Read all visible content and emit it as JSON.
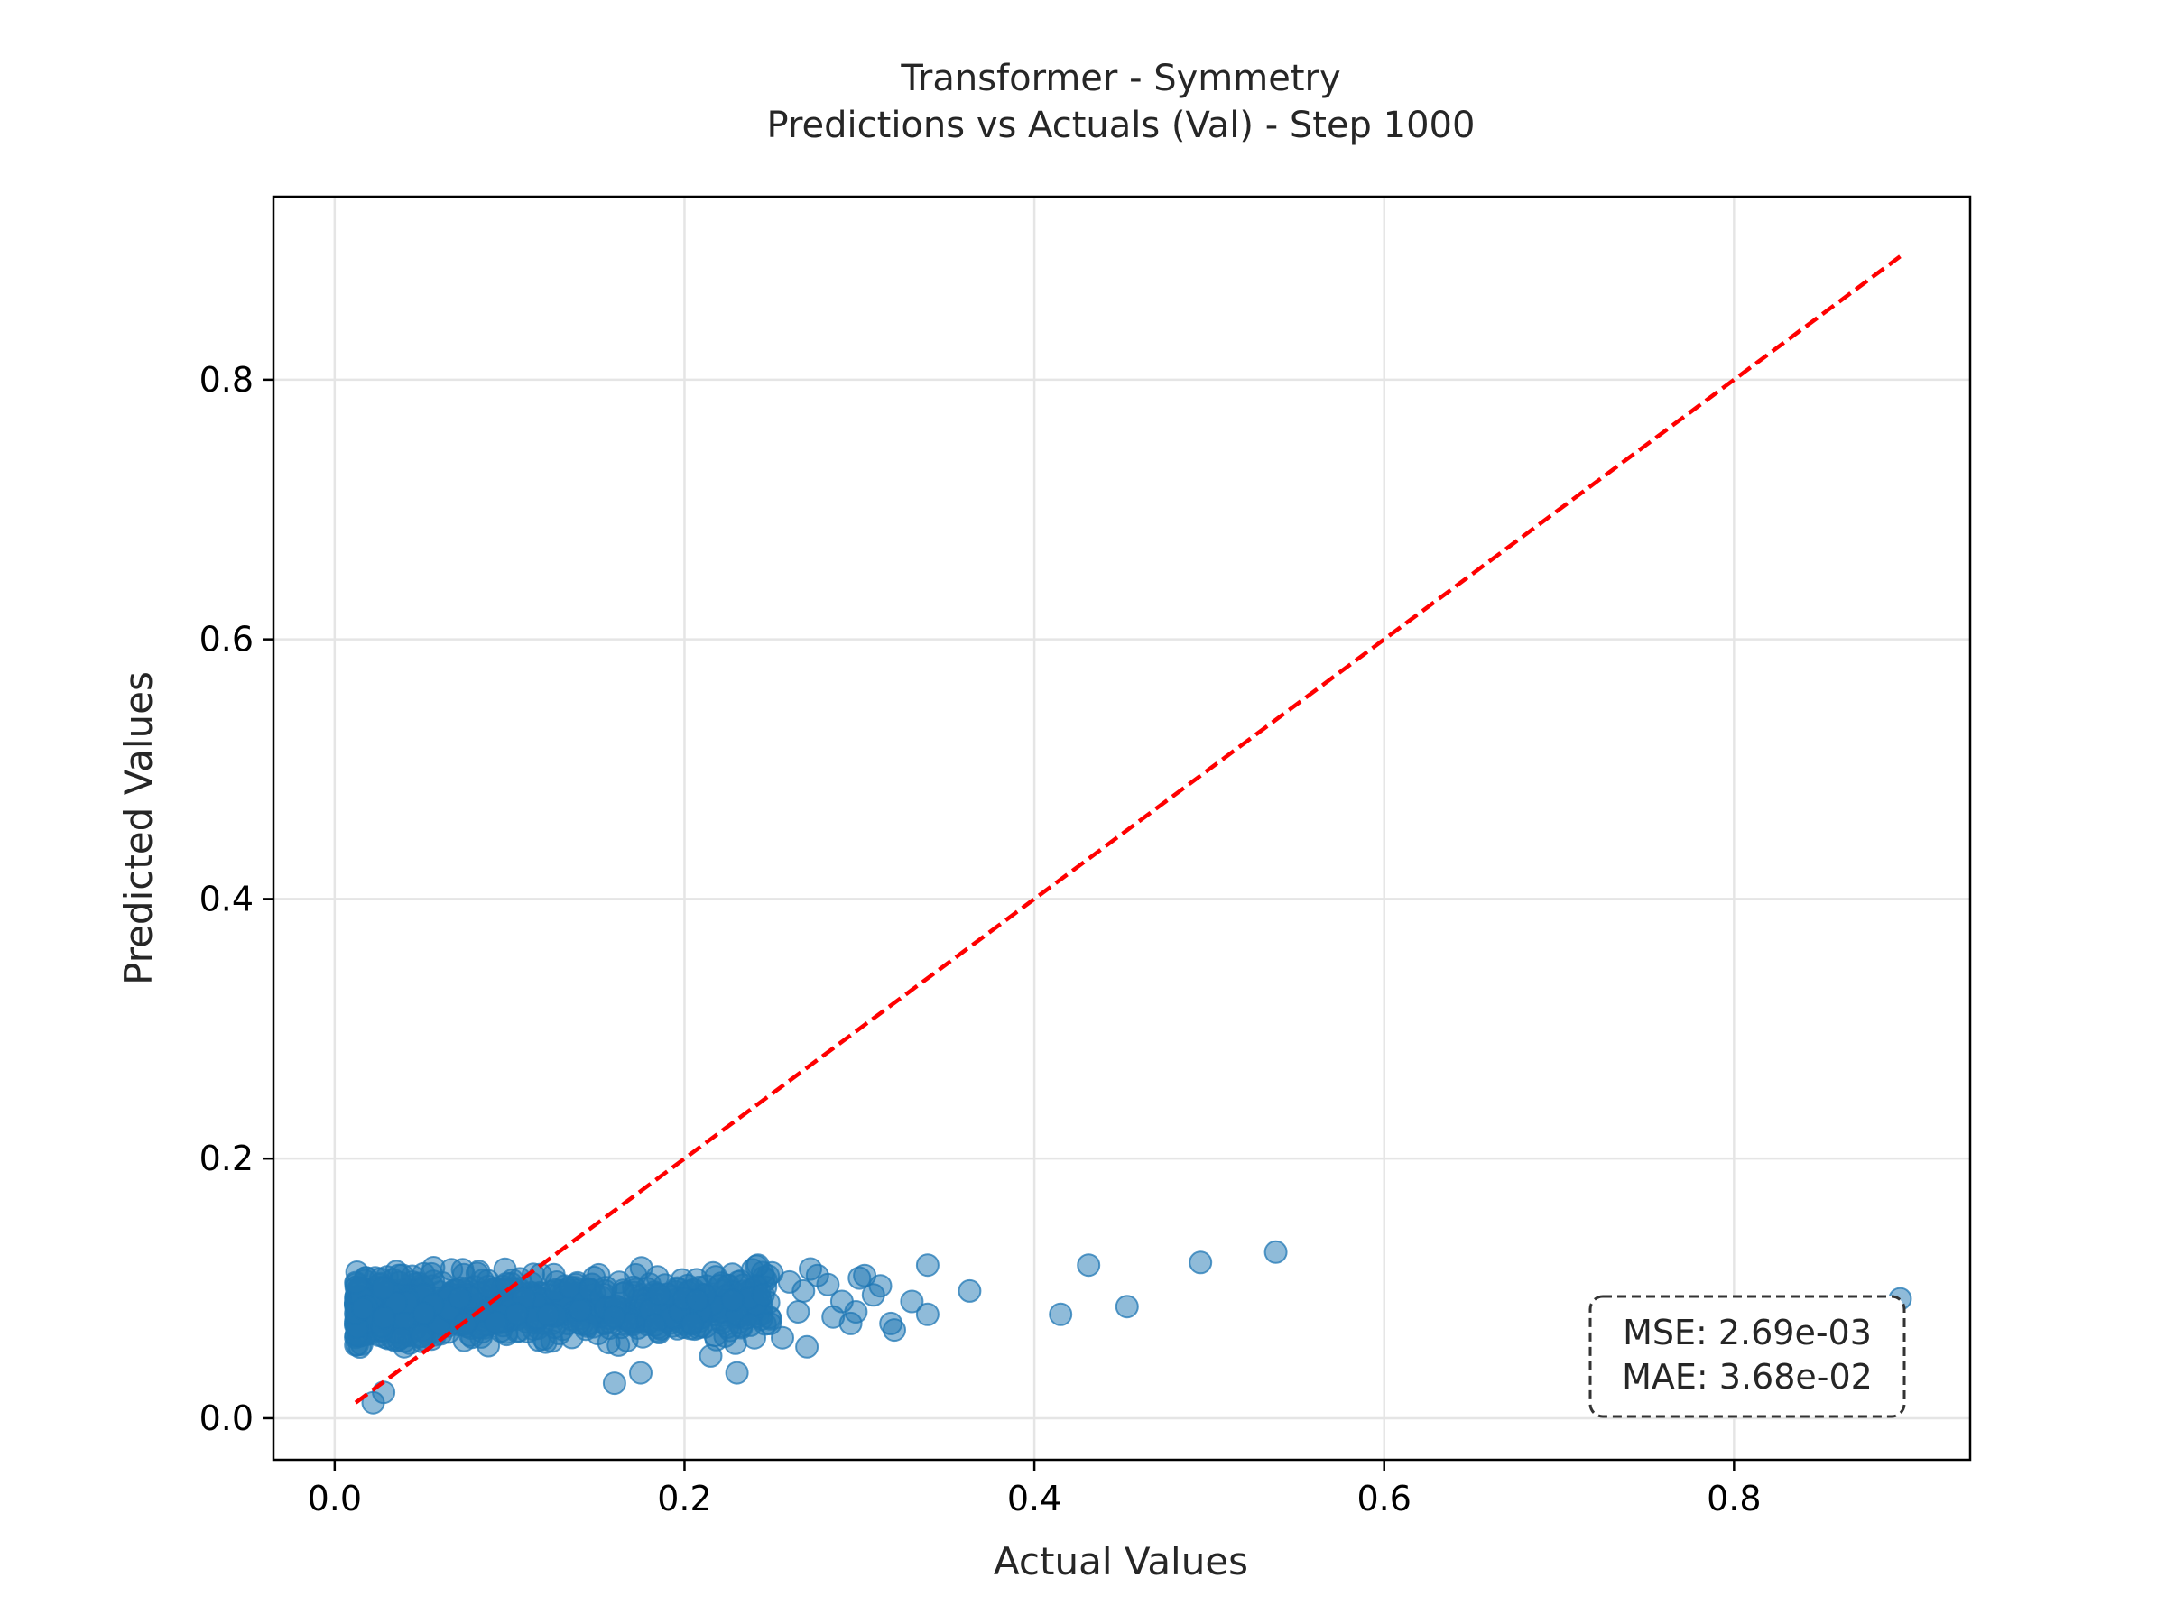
{
  "chart_data": {
    "type": "scatter",
    "title": "Transformer - Symmetry",
    "subtitle": "Predictions vs Actuals (Val) - Step 1000",
    "xlabel": "Actual Values",
    "ylabel": "Predicted Values",
    "xlim": [
      -0.035,
      0.935
    ],
    "ylim": [
      -0.032,
      0.941
    ],
    "xticks": [
      0.0,
      0.2,
      0.4,
      0.6,
      0.8
    ],
    "yticks": [
      0.0,
      0.2,
      0.4,
      0.6,
      0.8
    ],
    "xtick_labels": [
      "0.0",
      "0.2",
      "0.4",
      "0.6",
      "0.8"
    ],
    "ytick_labels": [
      "0.0",
      "0.2",
      "0.4",
      "0.6",
      "0.8"
    ],
    "grid": true,
    "point_color": "#1f77b4",
    "reference_line": {
      "x": [
        0.012,
        0.895
      ],
      "y": [
        0.012,
        0.895
      ],
      "color": "#ff0000",
      "style": "dashed"
    },
    "stats": {
      "mse": "MSE: 2.69e-03",
      "mae": "MAE: 3.68e-02"
    },
    "dense_cluster": {
      "x_range": [
        0.012,
        0.25
      ],
      "y_range": [
        0.015,
        0.125
      ]
    },
    "outliers": [
      {
        "x": 0.895,
        "y": 0.092
      },
      {
        "x": 0.538,
        "y": 0.128
      },
      {
        "x": 0.495,
        "y": 0.12
      },
      {
        "x": 0.431,
        "y": 0.118
      },
      {
        "x": 0.453,
        "y": 0.086
      },
      {
        "x": 0.415,
        "y": 0.08
      },
      {
        "x": 0.363,
        "y": 0.098
      },
      {
        "x": 0.339,
        "y": 0.118
      },
      {
        "x": 0.339,
        "y": 0.08
      },
      {
        "x": 0.33,
        "y": 0.09
      },
      {
        "x": 0.32,
        "y": 0.068
      },
      {
        "x": 0.318,
        "y": 0.073
      },
      {
        "x": 0.312,
        "y": 0.102
      },
      {
        "x": 0.308,
        "y": 0.095
      },
      {
        "x": 0.303,
        "y": 0.11
      },
      {
        "x": 0.3,
        "y": 0.108
      },
      {
        "x": 0.298,
        "y": 0.082
      },
      {
        "x": 0.295,
        "y": 0.073
      },
      {
        "x": 0.29,
        "y": 0.09
      },
      {
        "x": 0.285,
        "y": 0.078
      },
      {
        "x": 0.282,
        "y": 0.103
      },
      {
        "x": 0.276,
        "y": 0.11
      },
      {
        "x": 0.272,
        "y": 0.115
      },
      {
        "x": 0.27,
        "y": 0.055
      },
      {
        "x": 0.268,
        "y": 0.098
      },
      {
        "x": 0.265,
        "y": 0.082
      },
      {
        "x": 0.26,
        "y": 0.105
      },
      {
        "x": 0.256,
        "y": 0.062
      },
      {
        "x": 0.25,
        "y": 0.112
      },
      {
        "x": 0.245,
        "y": 0.095
      },
      {
        "x": 0.242,
        "y": 0.118
      },
      {
        "x": 0.24,
        "y": 0.062
      },
      {
        "x": 0.23,
        "y": 0.035
      },
      {
        "x": 0.022,
        "y": 0.012
      },
      {
        "x": 0.028,
        "y": 0.02
      },
      {
        "x": 0.16,
        "y": 0.027
      },
      {
        "x": 0.175,
        "y": 0.035
      },
      {
        "x": 0.215,
        "y": 0.048
      }
    ]
  }
}
